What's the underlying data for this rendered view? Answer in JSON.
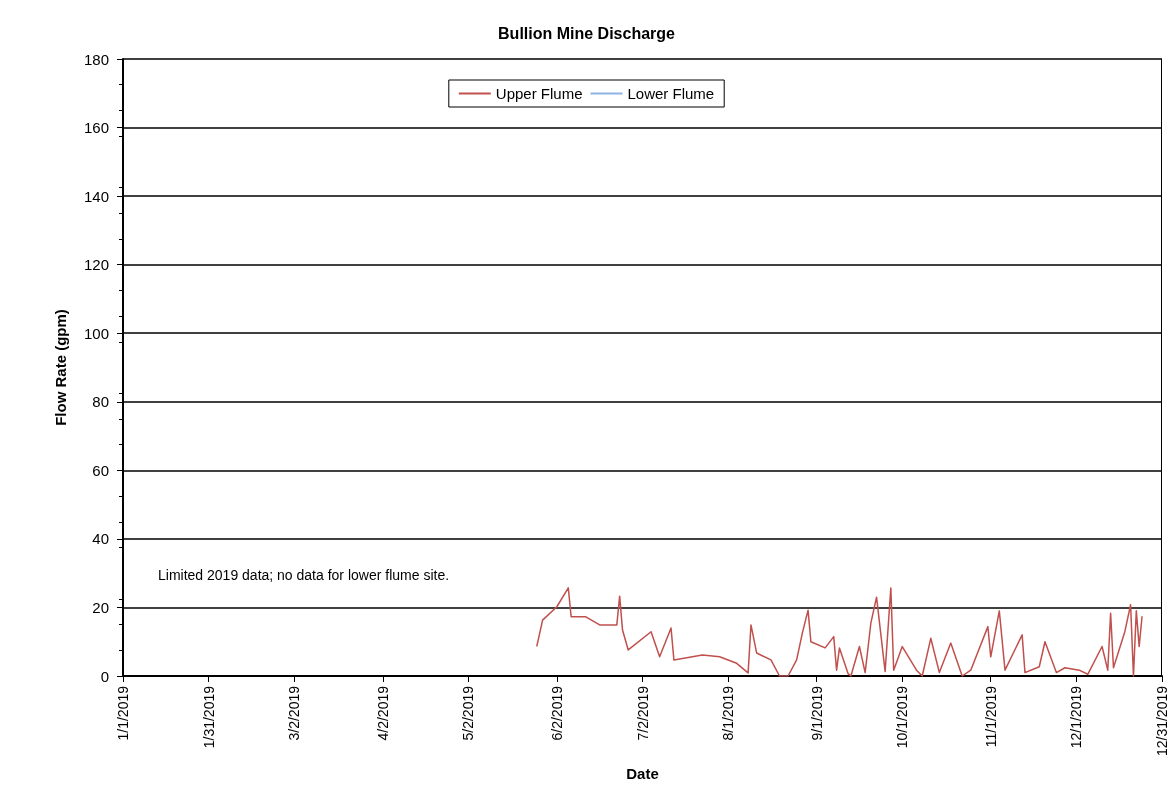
{
  "chart_data": {
    "type": "line",
    "title": "Bullion Mine Discharge",
    "xlabel": "Date",
    "ylabel": "Flow Rate (gpm)",
    "annotations": [
      "Limited 2019 data; no data for lower flume site."
    ],
    "xlim": [
      "2019-01-01",
      "2019-12-31"
    ],
    "xticks": [
      {
        "value": "2019-01-01",
        "label": "1/1/2019"
      },
      {
        "value": "2019-01-31",
        "label": "1/31/2019"
      },
      {
        "value": "2019-03-02",
        "label": "3/2/2019"
      },
      {
        "value": "2019-04-02",
        "label": "4/2/2019"
      },
      {
        "value": "2019-05-02",
        "label": "5/2/2019"
      },
      {
        "value": "2019-06-02",
        "label": "6/2/2019"
      },
      {
        "value": "2019-07-02",
        "label": "7/2/2019"
      },
      {
        "value": "2019-08-01",
        "label": "8/1/2019"
      },
      {
        "value": "2019-09-01",
        "label": "9/1/2019"
      },
      {
        "value": "2019-10-01",
        "label": "10/1/2019"
      },
      {
        "value": "2019-11-01",
        "label": "11/1/2019"
      },
      {
        "value": "2019-12-01",
        "label": "12/1/2019"
      },
      {
        "value": "2019-12-31",
        "label": "12/31/2019"
      }
    ],
    "ylim": [
      0,
      180
    ],
    "yticks": [
      0,
      20,
      40,
      60,
      80,
      100,
      120,
      140,
      160,
      180
    ],
    "grid": "y",
    "legend": "top",
    "marker": "none",
    "line_style": "solid",
    "series": [
      {
        "name": "Upper Flume",
        "color": "#c0504d",
        "x": [
          "2019-05-26",
          "2019-05-28",
          "2019-06-02",
          "2019-06-06",
          "2019-06-07",
          "2019-06-12",
          "2019-06-17",
          "2019-06-23",
          "2019-06-24",
          "2019-06-25",
          "2019-06-27",
          "2019-07-05",
          "2019-07-08",
          "2019-07-12",
          "2019-07-13",
          "2019-07-23",
          "2019-07-29",
          "2019-08-04",
          "2019-08-08",
          "2019-08-09",
          "2019-08-11",
          "2019-08-16",
          "2019-08-19",
          "2019-08-22",
          "2019-08-25",
          "2019-08-27",
          "2019-08-29",
          "2019-08-30",
          "2019-09-04",
          "2019-09-07",
          "2019-09-08",
          "2019-09-09",
          "2019-09-12",
          "2019-09-13",
          "2019-09-16",
          "2019-09-18",
          "2019-09-20",
          "2019-09-22",
          "2019-09-25",
          "2019-09-27",
          "2019-09-28",
          "2019-10-01",
          "2019-10-06",
          "2019-10-08",
          "2019-10-11",
          "2019-10-14",
          "2019-10-18",
          "2019-10-22",
          "2019-10-25",
          "2019-10-31",
          "2019-11-01",
          "2019-11-04",
          "2019-11-06",
          "2019-11-12",
          "2019-11-13",
          "2019-11-18",
          "2019-11-20",
          "2019-11-24",
          "2019-11-27",
          "2019-12-02",
          "2019-12-05",
          "2019-12-10",
          "2019-12-12",
          "2019-12-13",
          "2019-12-14",
          "2019-12-18",
          "2019-12-20",
          "2019-12-21",
          "2019-12-22",
          "2019-12-23",
          "2019-12-24"
        ],
        "values": [
          8.8,
          16.3,
          20.2,
          25.7,
          17.3,
          17.3,
          14.9,
          14.9,
          23.3,
          13.4,
          7.6,
          12.9,
          5.6,
          14,
          4.7,
          6.1,
          5.6,
          3.7,
          0.9,
          14.9,
          6.7,
          4.7,
          0,
          0,
          4.7,
          12.5,
          19.2,
          10,
          8.2,
          11.5,
          1.7,
          8.2,
          0.7,
          0,
          8.6,
          1,
          15.4,
          23,
          1.3,
          25.7,
          1.7,
          8.6,
          1.7,
          0,
          11,
          1,
          9.6,
          0,
          1.7,
          14.4,
          5.6,
          19,
          1.7,
          12,
          1,
          2.7,
          10,
          1,
          2.4,
          1.7,
          0.5,
          8.6,
          1.7,
          18.3,
          2.4,
          13,
          20.8,
          0,
          19,
          8.6,
          17.3
        ]
      },
      {
        "name": "Lower Flume",
        "color": "#8eb4e3"
      }
    ]
  }
}
